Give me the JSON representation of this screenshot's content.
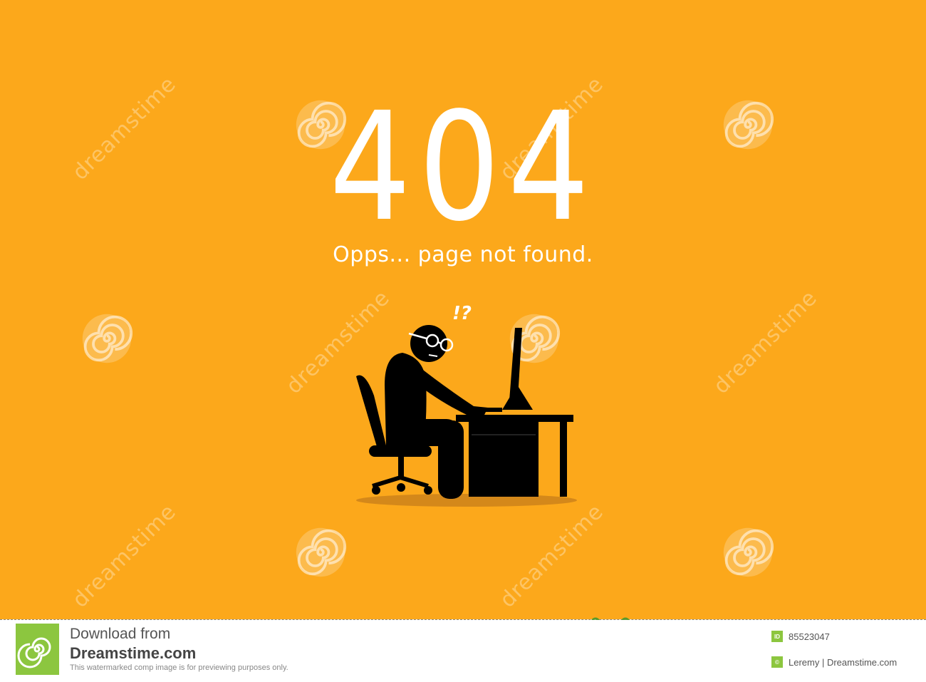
{
  "error": {
    "code": "404",
    "message": "Opps... page not found.",
    "mark": "!?"
  },
  "watermark": {
    "text": "dreamstime",
    "copyright_symbol": "©"
  },
  "footer": {
    "download_label": "Download from",
    "brand": "Dreamstime.com",
    "disclaimer": "This watermarked comp image is for previewing purposes only.",
    "id_badge": "ID",
    "image_id": "85523047",
    "copyright_badge": "©",
    "credit": "Leremy | Dreamstime.com"
  },
  "colors": {
    "background": "#FCA81B",
    "foreground": "#FFFFFF",
    "figure": "#000000",
    "brand_green": "#8CC63F"
  },
  "icons": [
    "spiral-watermark-icon",
    "scissors-icon",
    "dreamstime-logo-icon"
  ]
}
